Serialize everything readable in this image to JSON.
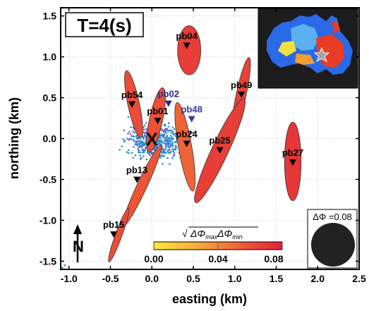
{
  "chart_data": {
    "type": "scatter",
    "title": "T=4(s)",
    "xlabel": "easting (km)",
    "ylabel": "northing (km)",
    "xlim": [
      -1.1,
      2.5
    ],
    "ylim": [
      -1.6,
      1.6
    ],
    "xticks": [
      "-1.0",
      "-0.5",
      "0.0",
      "0.5",
      "1.0",
      "1.5",
      "2.0",
      "2.5"
    ],
    "xtick_values": [
      -1.0,
      -0.5,
      0.0,
      0.5,
      1.0,
      1.5,
      2.0,
      2.5
    ],
    "yticks": [
      "1.5",
      "1.0",
      "0.5",
      "0.0",
      "-0.5",
      "-1.0",
      "-1.5"
    ],
    "ytick_values": [
      1.5,
      1.0,
      0.5,
      0.0,
      -0.5,
      -1.0,
      -1.5
    ],
    "grid": true,
    "center_marker": {
      "label": "X",
      "x": 0.0,
      "y": 0.0
    },
    "stations": [
      {
        "name": "pb01",
        "x": 0.07,
        "y": 0.22,
        "color": "#000000"
      },
      {
        "name": "pb02",
        "x": 0.2,
        "y": 0.43,
        "color": "#2a2a8a"
      },
      {
        "name": "pb04",
        "x": 0.42,
        "y": 1.14,
        "color": "#000000"
      },
      {
        "name": "pb13",
        "x": -0.18,
        "y": -0.5,
        "color": "#000000"
      },
      {
        "name": "pb15",
        "x": -0.46,
        "y": -1.17,
        "color": "#000000"
      },
      {
        "name": "pb24",
        "x": 0.42,
        "y": -0.06,
        "color": "#000000"
      },
      {
        "name": "pb25",
        "x": 0.82,
        "y": -0.14,
        "color": "#000000"
      },
      {
        "name": "pb27",
        "x": 1.7,
        "y": -0.29,
        "color": "#000000"
      },
      {
        "name": "pb48",
        "x": 0.48,
        "y": 0.24,
        "color": "#3a3aa0"
      },
      {
        "name": "pb49",
        "x": 1.08,
        "y": 0.54,
        "color": "#000000"
      },
      {
        "name": "pb54",
        "x": -0.24,
        "y": 0.42,
        "color": "#000000"
      }
    ],
    "ellipses": [
      {
        "x": 0.45,
        "y": 1.08,
        "rx": 0.14,
        "ry": 0.3,
        "angle": 0,
        "value": 0.066
      },
      {
        "x": -0.22,
        "y": 0.42,
        "rx": 0.07,
        "ry": 0.42,
        "angle": -12,
        "value": 0.06
      },
      {
        "x": 0.05,
        "y": 0.23,
        "rx": 0.08,
        "ry": 0.4,
        "angle": 12,
        "value": 0.058
      },
      {
        "x": 1.08,
        "y": 0.55,
        "rx": 0.06,
        "ry": 0.45,
        "angle": 12,
        "value": 0.064
      },
      {
        "x": 0.82,
        "y": -0.15,
        "rx": 0.1,
        "ry": 0.7,
        "angle": 25,
        "value": 0.066
      },
      {
        "x": 0.4,
        "y": -0.1,
        "rx": 0.08,
        "ry": 0.55,
        "angle": -10,
        "value": 0.05
      },
      {
        "x": 1.7,
        "y": -0.28,
        "rx": 0.1,
        "ry": 0.48,
        "angle": 0,
        "value": 0.07
      },
      {
        "x": -0.12,
        "y": -0.58,
        "rx": 0.06,
        "ry": 0.55,
        "angle": 25,
        "value": 0.056
      },
      {
        "x": -0.4,
        "y": -1.18,
        "rx": 0.04,
        "ry": 0.35,
        "angle": 20,
        "value": 0.06
      }
    ],
    "colorbar": {
      "label": "√ΔΦmaxΔΦmin",
      "label_main": "ΔΦ",
      "label_sub1": "max",
      "label_sub2": "min",
      "ticks": [
        "0.00",
        "0.04",
        "0.08"
      ],
      "range": [
        0,
        0.08
      ],
      "colors": [
        "#ffe640",
        "#f7a83c",
        "#ee5a36",
        "#e0203a"
      ]
    },
    "reference_circle": {
      "label": "ΔΦ =0.08"
    },
    "north_arrow": {
      "label": "N"
    },
    "inset": {
      "description_colors": [
        "#2255ff",
        "#e83c24",
        "#f0e040"
      ]
    }
  }
}
